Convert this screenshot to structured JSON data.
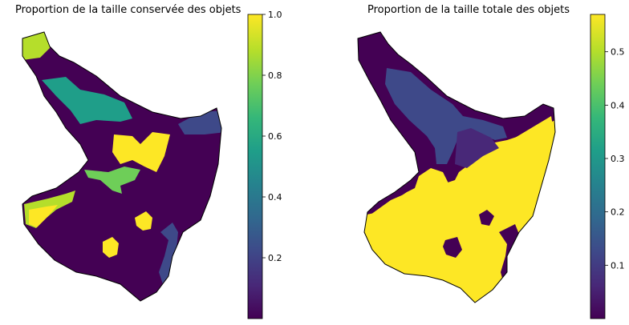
{
  "maps": [
    {
      "title": "Proportion de la taille conservée des objets",
      "colormap": "viridis",
      "colorbar": {
        "min": 0.0,
        "max": 1.0,
        "ticks": [
          {
            "value": 0.2,
            "label": "0.2"
          },
          {
            "value": 0.4,
            "label": "0.4"
          },
          {
            "value": 0.6,
            "label": "0.6"
          },
          {
            "value": 0.8,
            "label": "0.8"
          },
          {
            "value": 1.0,
            "label": "1.0"
          }
        ]
      }
    },
    {
      "title": "Proportion de la taille totale des objets",
      "colormap": "viridis",
      "colorbar": {
        "min": 0.0,
        "max": 0.57,
        "ticks": [
          {
            "value": 0.1,
            "label": "0.1"
          },
          {
            "value": 0.2,
            "label": "0.2"
          },
          {
            "value": 0.3,
            "label": "0.3"
          },
          {
            "value": 0.4,
            "label": "0.4"
          },
          {
            "value": 0.5,
            "label": "0.5"
          }
        ]
      }
    }
  ],
  "colors": {
    "viridis": [
      "#440154",
      "#482878",
      "#3e4989",
      "#31688e",
      "#26828e",
      "#1f9e89",
      "#35b779",
      "#6ece58",
      "#b5de2b",
      "#fde725"
    ],
    "outline": "#000000"
  }
}
